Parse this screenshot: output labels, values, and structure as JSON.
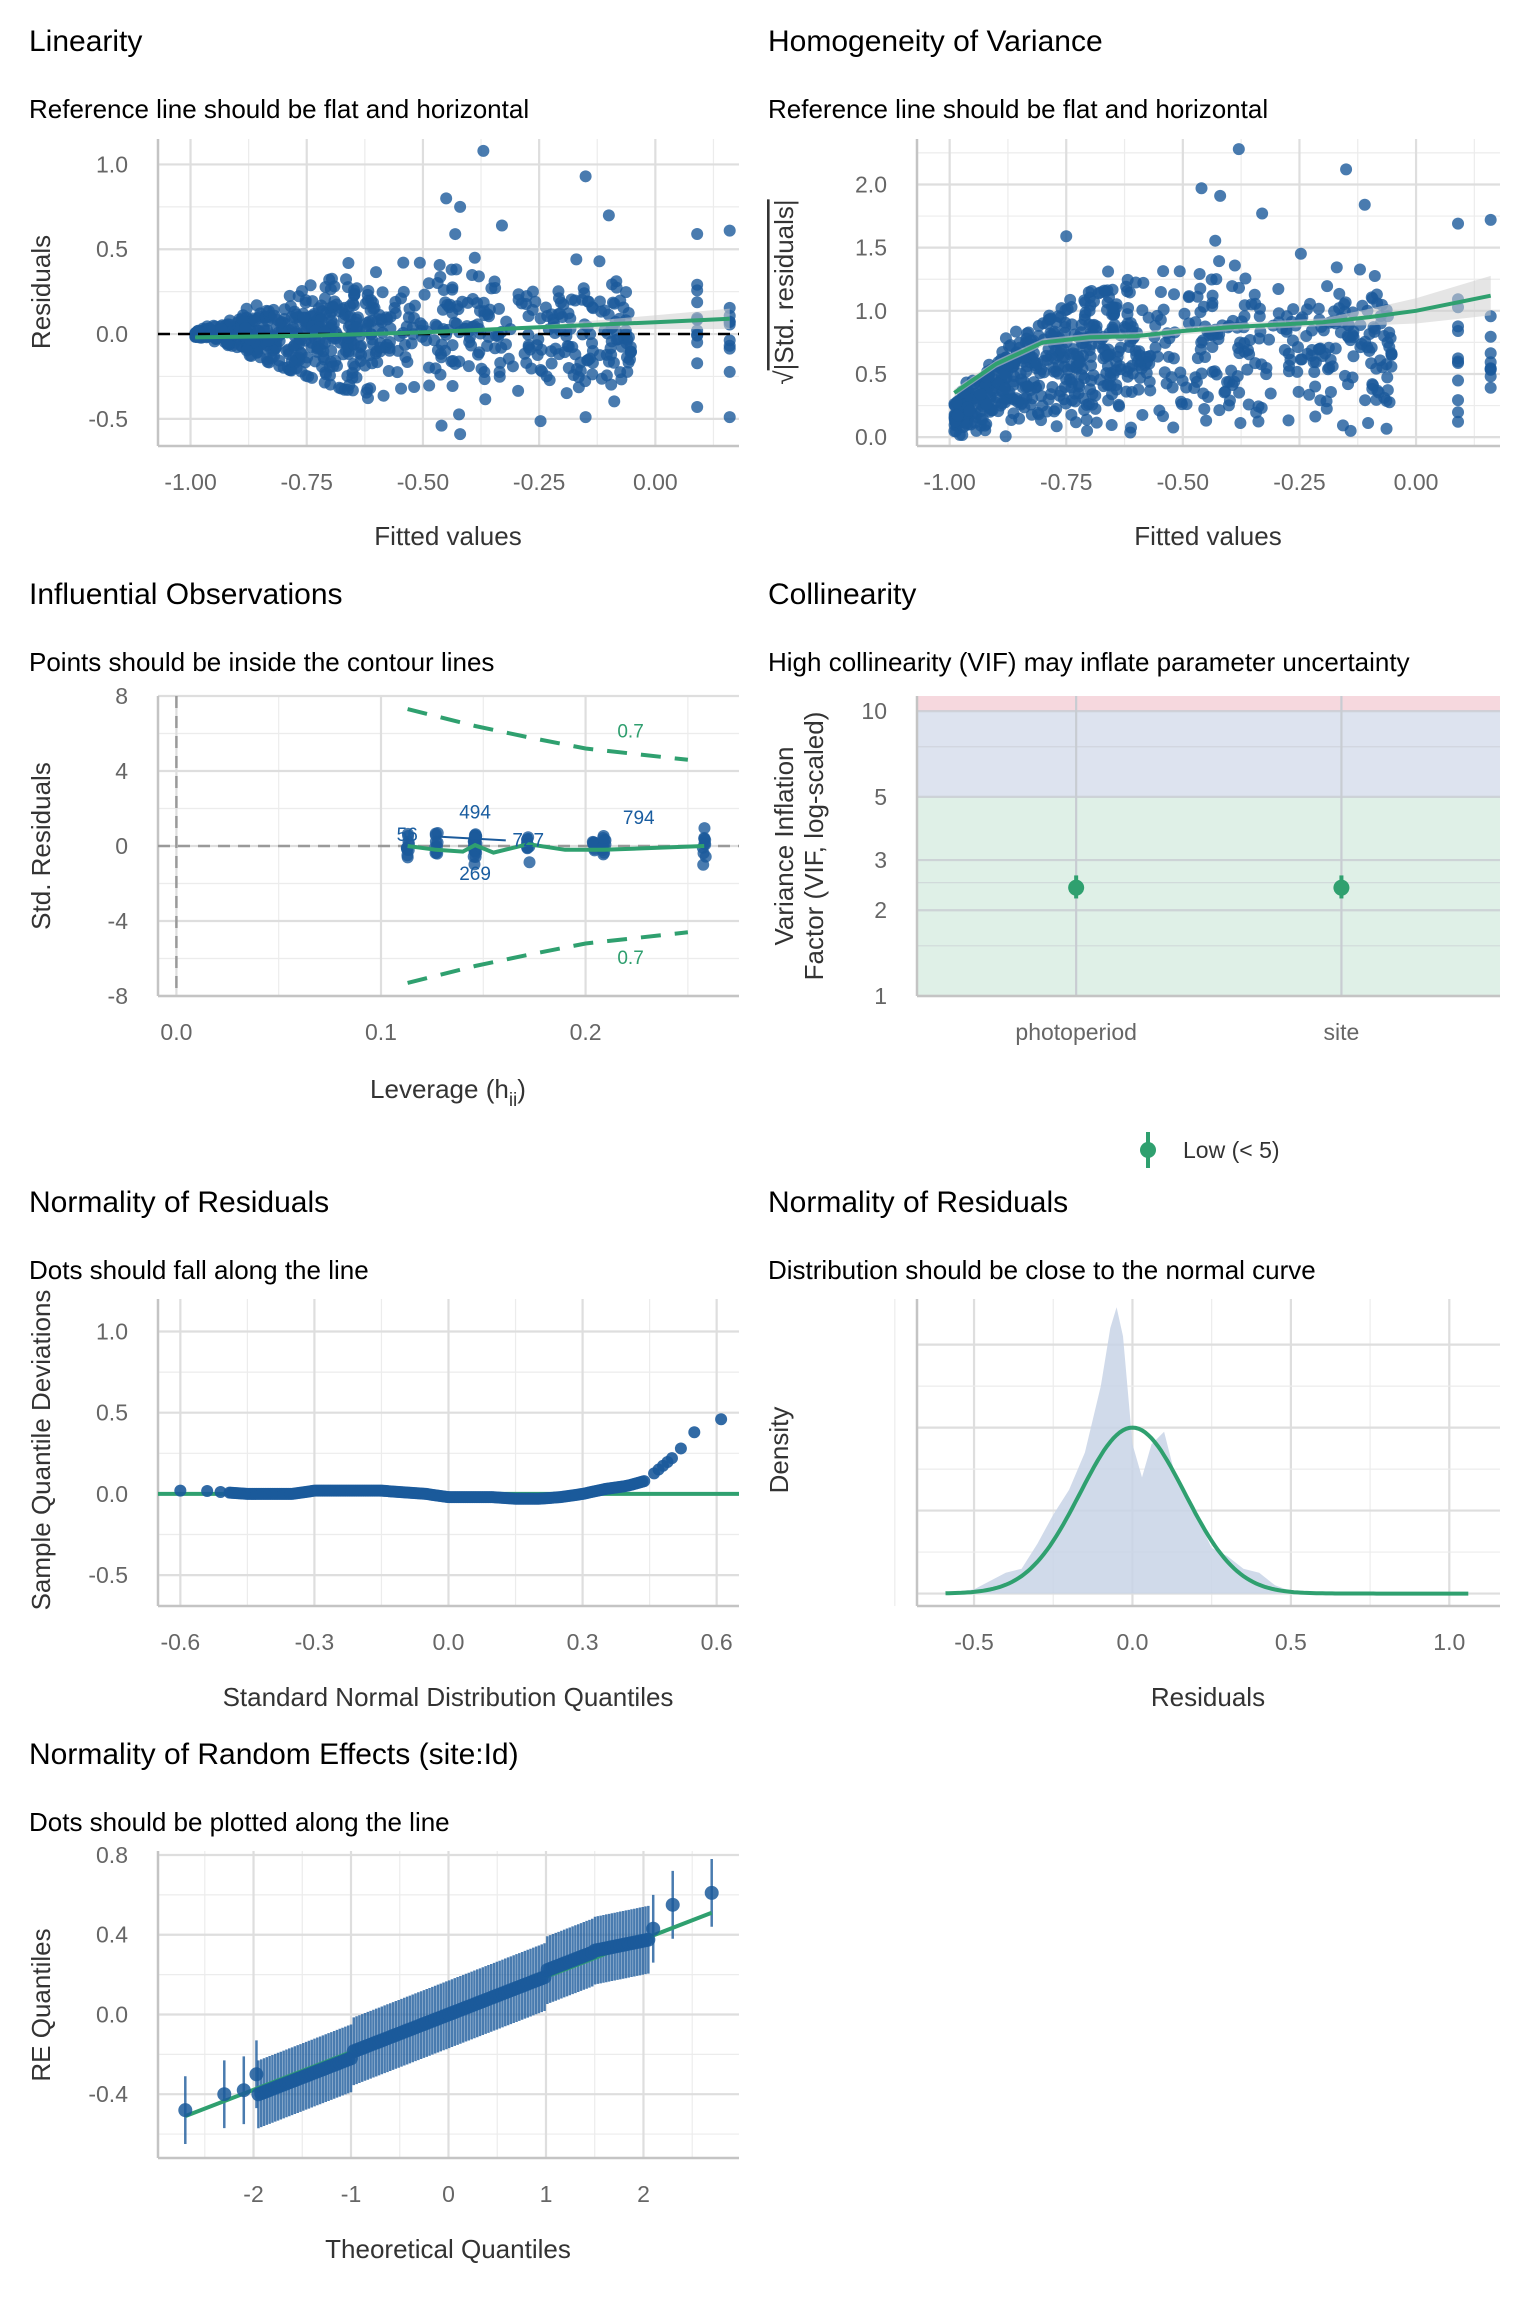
{
  "colors": {
    "points": "#1b5a9b",
    "reference": "#2fa06f",
    "ci_band": "#d0d0d0",
    "density_fill": "#c8d4e6",
    "vif_low": "#dff0e7",
    "vif_moderate": "#dde3ef",
    "vif_high": "#f6d8de"
  },
  "chart_data": [
    {
      "id": "linearity",
      "type": "scatter",
      "title": "Linearity",
      "subtitle": "Reference line should be flat and horizontal",
      "xlabel": "Fitted values",
      "ylabel": "Residuals",
      "xlim": [
        -1.07,
        0.18
      ],
      "ylim": [
        -0.66,
        1.15
      ],
      "xticks": [
        -1.0,
        -0.75,
        -0.5,
        -0.25,
        0.0
      ],
      "xtick_labels": [
        "-1.00",
        "-0.75",
        "-0.50",
        "-0.25",
        "0.00"
      ],
      "yticks": [
        -0.5,
        0.0,
        0.5,
        1.0
      ],
      "ytick_labels": [
        "-0.5",
        "0.0",
        "0.5",
        "1.0"
      ],
      "reference_hline": 0,
      "smooth": {
        "x": [
          -0.99,
          -0.75,
          -0.5,
          -0.25,
          0.0,
          0.16
        ],
        "y": [
          -0.02,
          -0.01,
          0.01,
          0.04,
          0.07,
          0.09
        ]
      },
      "n_points": 800,
      "outliers": [
        [
          -0.37,
          1.08
        ],
        [
          -0.15,
          0.93
        ],
        [
          -0.45,
          0.8
        ],
        [
          -0.42,
          0.75
        ],
        [
          -0.1,
          0.7
        ],
        [
          -0.33,
          0.64
        ],
        [
          0.09,
          0.59
        ],
        [
          0.16,
          0.61
        ],
        [
          -0.42,
          -0.59
        ],
        [
          -0.46,
          -0.54
        ],
        [
          0.16,
          -0.49
        ],
        [
          0.09,
          -0.43
        ],
        [
          -0.15,
          -0.49
        ]
      ]
    },
    {
      "id": "homogeneity",
      "type": "scatter",
      "title": "Homogeneity of Variance",
      "subtitle": "Reference line should be flat and horizontal",
      "xlabel": "Fitted values",
      "ylabel": "√|Std. residuals|",
      "xlim": [
        -1.07,
        0.18
      ],
      "ylim": [
        -0.07,
        2.36
      ],
      "xticks": [
        -1.0,
        -0.75,
        -0.5,
        -0.25,
        0.0
      ],
      "xtick_labels": [
        "-1.00",
        "-0.75",
        "-0.50",
        "-0.25",
        "0.00"
      ],
      "yticks": [
        0.0,
        0.5,
        1.0,
        1.5,
        2.0
      ],
      "ytick_labels": [
        "0.0",
        "0.5",
        "1.0",
        "1.5",
        "2.0"
      ],
      "smooth": {
        "x": [
          -0.99,
          -0.9,
          -0.8,
          -0.7,
          -0.6,
          -0.5,
          -0.4,
          -0.3,
          -0.2,
          -0.1,
          0.0,
          0.16
        ],
        "y": [
          0.35,
          0.58,
          0.75,
          0.79,
          0.8,
          0.84,
          0.87,
          0.89,
          0.91,
          0.95,
          1.0,
          1.12
        ]
      },
      "n_points": 800,
      "outliers": [
        [
          -0.38,
          2.28
        ],
        [
          -0.15,
          2.12
        ],
        [
          -0.46,
          1.97
        ],
        [
          -0.42,
          1.91
        ],
        [
          -0.11,
          1.84
        ],
        [
          -0.33,
          1.77
        ],
        [
          0.09,
          1.69
        ],
        [
          0.16,
          1.72
        ],
        [
          -0.75,
          1.59
        ]
      ]
    },
    {
      "id": "influential",
      "type": "scatter",
      "title": "Influential Observations",
      "subtitle": "Points should be inside the contour lines",
      "xlabel": "Leverage (hii)",
      "xlabel_main": "Leverage (h",
      "xlabel_sub": "ii",
      "xlabel_close": ")",
      "ylabel": "Std. Residuals",
      "xlim": [
        -0.009,
        0.275
      ],
      "ylim": [
        -8,
        8
      ],
      "xticks": [
        0.0,
        0.1,
        0.2
      ],
      "xtick_labels": [
        "0.0",
        "0.1",
        "0.2"
      ],
      "yticks": [
        -8,
        -4,
        0,
        4,
        8
      ],
      "ytick_labels": [
        "-8",
        "-4",
        "0",
        "4",
        "8"
      ],
      "reference_hline": 0,
      "reference_vline": 0,
      "leverage_groups": [
        0.113,
        0.127,
        0.146,
        0.172,
        0.204,
        0.209,
        0.258
      ],
      "contour_upper": {
        "x": [
          0.113,
          0.146,
          0.172,
          0.2,
          0.25
        ],
        "y": [
          7.3,
          6.4,
          5.8,
          5.2,
          4.6
        ]
      },
      "contour_lower": {
        "x": [
          0.113,
          0.146,
          0.172,
          0.2,
          0.25
        ],
        "y": [
          -7.3,
          -6.4,
          -5.8,
          -5.2,
          -4.6
        ]
      },
      "contour_label": "0.7",
      "smooth": {
        "x": [
          0.113,
          0.127,
          0.14,
          0.146,
          0.155,
          0.172,
          0.19,
          0.209,
          0.258
        ],
        "y": [
          0.0,
          -0.2,
          -0.3,
          0.05,
          -0.35,
          0.1,
          -0.2,
          -0.2,
          0.0
        ]
      },
      "labeled_points": [
        {
          "label": "56",
          "x": 0.113,
          "y": 0.6
        },
        {
          "label": "494",
          "x": 0.146,
          "y": 1.1
        },
        {
          "label": "727",
          "x": 0.172,
          "y": 0.5
        },
        {
          "label": "269",
          "x": 0.146,
          "y": -1.0
        },
        {
          "label": "794",
          "x": 0.209,
          "y": 0.9
        }
      ]
    },
    {
      "id": "collinearity",
      "type": "scatter",
      "title": "Collinearity",
      "subtitle": "High collinearity (VIF) may inflate parameter uncertainty",
      "xlabel": "",
      "ylabel_line1": "Variance Inflation",
      "ylabel_line2": "Factor (VIF, log-scaled)",
      "scale": "log",
      "ylim": [
        1,
        11.3
      ],
      "categories": [
        "photoperiod",
        "site"
      ],
      "values": [
        2.4,
        2.4
      ],
      "ci_low": [
        2.2,
        2.2
      ],
      "ci_high": [
        2.65,
        2.65
      ],
      "yticks": [
        1,
        2,
        3,
        5,
        10
      ],
      "ytick_labels": [
        "1",
        "2",
        "3",
        "5",
        "10"
      ],
      "bands": [
        {
          "name": "low",
          "from": 1,
          "to": 5
        },
        {
          "name": "moderate",
          "from": 5,
          "to": 10
        },
        {
          "name": "high",
          "from": 10,
          "to": 11.3
        }
      ],
      "legend": {
        "position": "bottom",
        "entries": [
          "Low (< 5)"
        ]
      }
    },
    {
      "id": "qq-residuals",
      "type": "scatter",
      "title": "Normality of Residuals",
      "subtitle": "Dots should fall along the line",
      "xlabel": "Standard Normal Distribution Quantiles",
      "ylabel": "Sample Quantile Deviations",
      "xlim": [
        -0.65,
        0.65
      ],
      "ylim": [
        -0.69,
        1.2
      ],
      "xticks": [
        -0.6,
        -0.3,
        0.0,
        0.3,
        0.6
      ],
      "xtick_labels": [
        "-0.6",
        "-0.3",
        "0.0",
        "0.3",
        "0.6"
      ],
      "yticks": [
        -0.5,
        0.0,
        0.5,
        1.0
      ],
      "ytick_labels": [
        "-0.5",
        "0.0",
        "0.5",
        "1.0"
      ],
      "reference_hline": 0,
      "curve": {
        "x": [
          -0.6,
          -0.55,
          -0.5,
          -0.45,
          -0.4,
          -0.35,
          -0.3,
          -0.25,
          -0.2,
          -0.15,
          -0.1,
          -0.05,
          0.0,
          0.05,
          0.1,
          0.15,
          0.2,
          0.25,
          0.3,
          0.35,
          0.4,
          0.44,
          0.47,
          0.5,
          0.52,
          0.55,
          0.61
        ],
        "y": [
          0.02,
          0.02,
          0.01,
          0.0,
          0.0,
          0.0,
          0.02,
          0.02,
          0.02,
          0.02,
          0.01,
          0.0,
          -0.02,
          -0.02,
          -0.02,
          -0.03,
          -0.03,
          -0.02,
          0.0,
          0.03,
          0.05,
          0.08,
          0.15,
          0.22,
          0.28,
          0.38,
          0.46
        ]
      }
    },
    {
      "id": "density-residuals",
      "type": "area",
      "title": "Normality of Residuals",
      "subtitle": "Distribution should be close to the normal curve",
      "xlabel": "Residuals",
      "ylabel": "Density",
      "xlim": [
        -0.68,
        1.16
      ],
      "xticks": [
        -0.5,
        0.0,
        0.5,
        1.0
      ],
      "xtick_labels": [
        "-0.5",
        "0.0",
        "0.5",
        "1.0"
      ],
      "density": {
        "x": [
          -0.6,
          -0.5,
          -0.4,
          -0.35,
          -0.3,
          -0.25,
          -0.2,
          -0.15,
          -0.1,
          -0.07,
          -0.05,
          -0.03,
          0.0,
          0.03,
          0.06,
          0.1,
          0.13,
          0.17,
          0.2,
          0.25,
          0.3,
          0.35,
          0.4,
          0.45,
          0.5,
          0.6
        ],
        "y": [
          0.0,
          0.05,
          0.25,
          0.3,
          0.6,
          0.95,
          1.25,
          1.7,
          2.5,
          3.2,
          3.45,
          3.1,
          1.8,
          1.4,
          1.8,
          1.95,
          1.5,
          1.2,
          0.95,
          0.55,
          0.45,
          0.3,
          0.25,
          0.1,
          0.03,
          0.0
        ]
      },
      "normal_curve": {
        "mean": 0.0,
        "sd": 0.165,
        "x_range": [
          -0.59,
          1.07
        ]
      },
      "ylim": [
        -0.15,
        3.55
      ]
    },
    {
      "id": "qq-random-effects",
      "type": "scatter",
      "title": "Normality of Random Effects (site:Id)",
      "subtitle": "Dots should be plotted along the line",
      "xlabel": "Theoretical Quantiles",
      "ylabel": "RE Quantiles",
      "xlim": [
        -2.98,
        2.98
      ],
      "ylim": [
        -0.72,
        0.82
      ],
      "xticks": [
        -2,
        -1,
        0,
        1,
        2
      ],
      "xtick_labels": [
        "-2",
        "-1",
        "0",
        "1",
        "2"
      ],
      "yticks": [
        -0.4,
        0.0,
        0.4,
        0.8
      ],
      "ytick_labels": [
        "-0.4",
        "0.0",
        "0.4",
        "0.8"
      ],
      "reference_line": {
        "x": [
          -2.7,
          2.7
        ],
        "y": [
          -0.51,
          0.51
        ]
      },
      "n_points": 140,
      "ci_halfwidth": 0.17,
      "tail_points": [
        [
          -2.7,
          -0.48
        ],
        [
          -2.3,
          -0.4
        ],
        [
          -2.1,
          -0.38
        ],
        [
          -1.97,
          -0.3
        ],
        [
          2.1,
          0.43
        ],
        [
          2.3,
          0.55
        ],
        [
          2.7,
          0.61
        ]
      ]
    }
  ]
}
